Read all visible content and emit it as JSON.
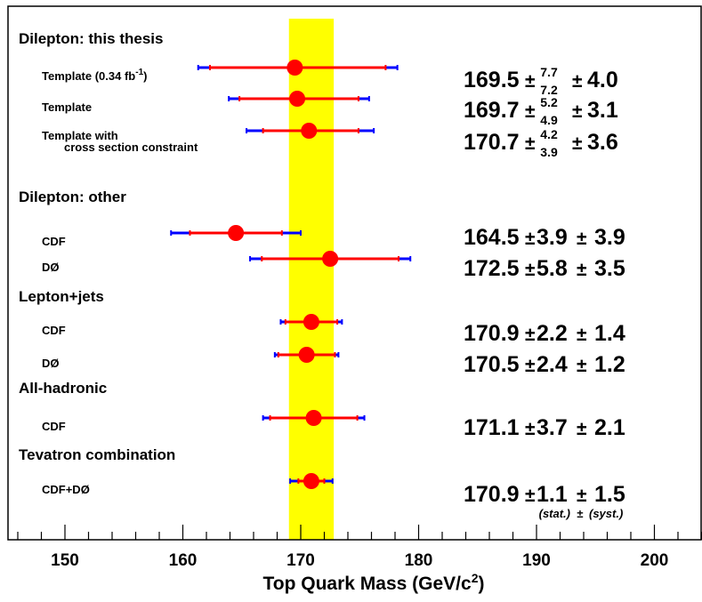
{
  "chart_data": {
    "type": "scatter",
    "title": "",
    "xlabel": "Top Quark Mass (GeV/c",
    "xlabel_sup": "2",
    "xlabel_close": ")",
    "ylabel": "",
    "xlim": [
      145,
      204
    ],
    "xticks": [
      "150",
      "160",
      "170",
      "180",
      "190",
      "200"
    ],
    "grid": false,
    "band": {
      "low": 169.0,
      "high": 172.8,
      "color": "#ffff00"
    },
    "colors": {
      "point": "#ff0000",
      "stat": "#ff0000",
      "syst": "#0000ff",
      "band": "#ffff00"
    },
    "footnote": {
      "stat": "(stat.)",
      "pm": "±",
      "syst": "(syst.)"
    },
    "groups": [
      {
        "title": "Dilepton: this thesis",
        "entries": [
          {
            "label": "Template (0.34 fb",
            "label_sup": "-1",
            "label_close": ")",
            "value": 169.5,
            "stat_lo": 7.2,
            "stat_hi": 7.7,
            "total_lo": 8.2,
            "total_hi": 8.7,
            "text": {
              "value": "169.5",
              "pm1": "±",
              "stat_hi": "7.7",
              "stat_lo": "7.2",
              "pm2": "±",
              "syst": "4.0"
            }
          },
          {
            "label": "Template",
            "value": 169.7,
            "stat_lo": 4.9,
            "stat_hi": 5.2,
            "total_lo": 5.8,
            "total_hi": 6.1,
            "text": {
              "value": "169.7",
              "pm1": "±",
              "stat_hi": "5.2",
              "stat_lo": "4.9",
              "pm2": "±",
              "syst": "3.1"
            }
          },
          {
            "label": "Template with",
            "label2": "cross section constraint",
            "value": 170.7,
            "stat_lo": 3.9,
            "stat_hi": 4.2,
            "total_lo": 5.3,
            "total_hi": 5.5,
            "text": {
              "value": "170.7",
              "pm1": "±",
              "stat_hi": "4.2",
              "stat_lo": "3.9",
              "pm2": "±",
              "syst": "3.6"
            }
          }
        ]
      },
      {
        "title": "Dilepton: other",
        "entries": [
          {
            "label": "CDF",
            "value": 164.5,
            "stat_lo": 3.9,
            "stat_hi": 3.9,
            "total_lo": 5.5,
            "total_hi": 5.5,
            "text": {
              "value": "164.5",
              "pm1": "±",
              "stat": "3.9",
              "pm2": "±",
              "syst": "3.9"
            }
          },
          {
            "label": "DØ",
            "value": 172.5,
            "stat_lo": 5.8,
            "stat_hi": 5.8,
            "total_lo": 6.8,
            "total_hi": 6.8,
            "text": {
              "value": "172.5",
              "pm1": "±",
              "stat": "5.8",
              "pm2": "±",
              "syst": "3.5"
            }
          }
        ]
      },
      {
        "title": "Lepton+jets",
        "entries": [
          {
            "label": "CDF",
            "value": 170.9,
            "stat_lo": 2.2,
            "stat_hi": 2.2,
            "total_lo": 2.6,
            "total_hi": 2.6,
            "text": {
              "value": "170.9",
              "pm1": "±",
              "stat": "2.2",
              "pm2": "±",
              "syst": "1.4"
            }
          },
          {
            "label": "DØ",
            "value": 170.5,
            "stat_lo": 2.4,
            "stat_hi": 2.4,
            "total_lo": 2.7,
            "total_hi": 2.7,
            "text": {
              "value": "170.5",
              "pm1": "±",
              "stat": "2.4",
              "pm2": "±",
              "syst": "1.2"
            }
          }
        ]
      },
      {
        "title": "All-hadronic",
        "entries": [
          {
            "label": "CDF",
            "value": 171.1,
            "stat_lo": 3.7,
            "stat_hi": 3.7,
            "total_lo": 4.3,
            "total_hi": 4.3,
            "text": {
              "value": "171.1",
              "pm1": "±",
              "stat": "3.7",
              "pm2": "±",
              "syst": "2.1"
            }
          }
        ]
      },
      {
        "title": "Tevatron combination",
        "entries": [
          {
            "label": "CDF+DØ",
            "value": 170.9,
            "stat_lo": 1.1,
            "stat_hi": 1.1,
            "total_lo": 1.8,
            "total_hi": 1.8,
            "text": {
              "value": "170.9",
              "pm1": "±",
              "stat": "1.1",
              "pm2": "±",
              "syst": "1.5"
            }
          }
        ]
      }
    ]
  }
}
